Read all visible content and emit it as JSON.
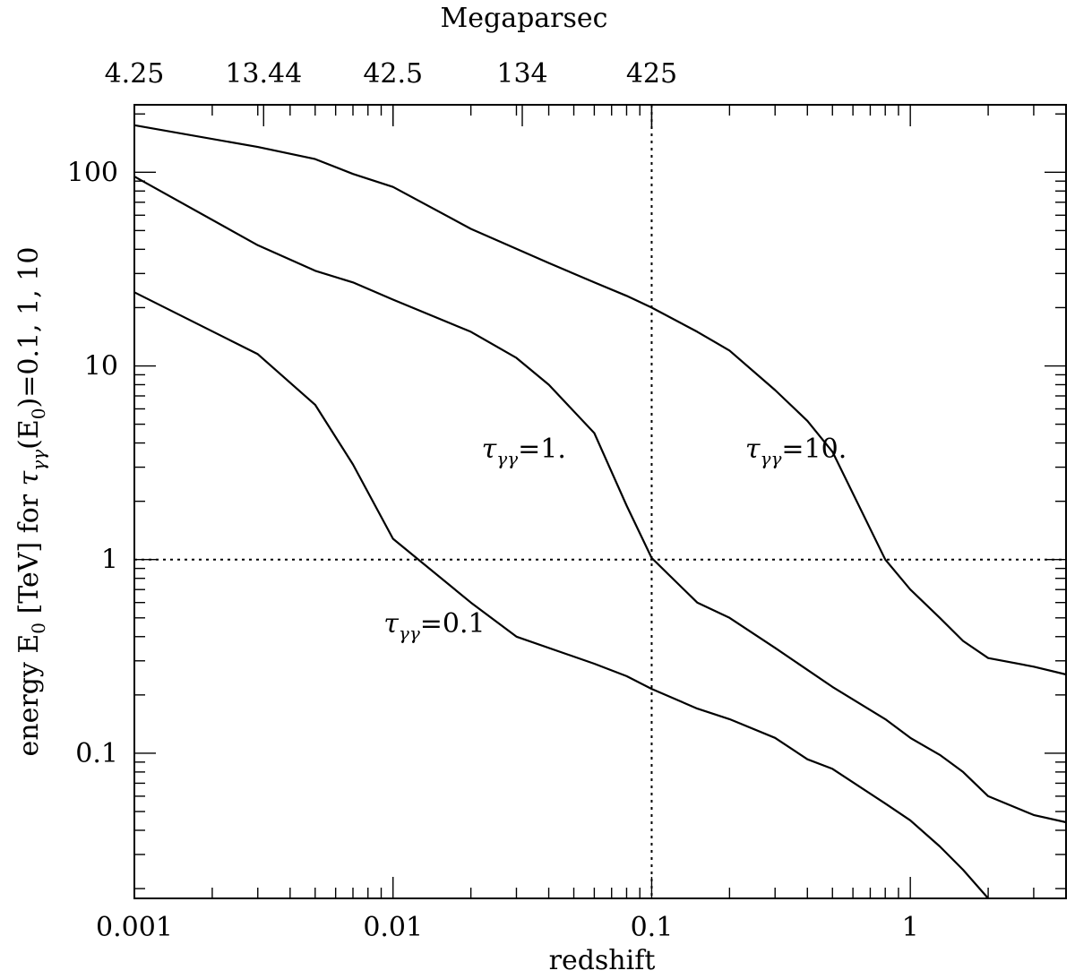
{
  "chart_data": {
    "type": "line",
    "x_scale": "log",
    "y_scale": "log",
    "xlabel": "redshift",
    "ylabel": "energy E₀ [TeV] for τγγ(E₀)=0.1, 1, 10",
    "top_axis_label": "Megaparsec",
    "xlim": [
      0.001,
      4
    ],
    "ylim": [
      0.0178,
      223
    ],
    "x_ticks": [
      {
        "value": 0.001,
        "label": "0.001"
      },
      {
        "value": 0.01,
        "label": "0.01"
      },
      {
        "value": 0.1,
        "label": "0.1"
      },
      {
        "value": 1,
        "label": "1"
      }
    ],
    "y_ticks": [
      {
        "value": 0.1,
        "label": "0.1"
      },
      {
        "value": 1,
        "label": "1"
      },
      {
        "value": 10,
        "label": "10"
      },
      {
        "value": 100,
        "label": "100"
      }
    ],
    "top_ticks": [
      {
        "value": 0.001,
        "label": "4.25"
      },
      {
        "value": 0.00316,
        "label": "13.44"
      },
      {
        "value": 0.01,
        "label": "42.5"
      },
      {
        "value": 0.0316,
        "label": "134"
      },
      {
        "value": 0.1,
        "label": "425"
      }
    ],
    "reference_lines": [
      {
        "axis": "x",
        "value": 0.1,
        "style": "dotted"
      },
      {
        "axis": "y",
        "value": 1,
        "style": "dotted"
      }
    ],
    "series": [
      {
        "name": "τγγ=0.1",
        "x": [
          0.001,
          0.003,
          0.005,
          0.007,
          0.01,
          0.02,
          0.03,
          0.06,
          0.08,
          0.1,
          0.15,
          0.2,
          0.3,
          0.4,
          0.5,
          0.8,
          1.0,
          1.3,
          1.6,
          2.0
        ],
        "y": [
          24,
          11.5,
          6.3,
          3.1,
          1.28,
          0.6,
          0.4,
          0.29,
          0.25,
          0.215,
          0.17,
          0.15,
          0.12,
          0.093,
          0.083,
          0.055,
          0.045,
          0.033,
          0.025,
          0.0178
        ]
      },
      {
        "name": "τγγ=1.",
        "x": [
          0.001,
          0.003,
          0.005,
          0.007,
          0.01,
          0.02,
          0.03,
          0.04,
          0.06,
          0.08,
          0.1,
          0.15,
          0.2,
          0.3,
          0.5,
          0.8,
          1.0,
          1.3,
          1.6,
          2.0,
          3.0,
          4.0
        ],
        "y": [
          95,
          42,
          31,
          27,
          22,
          15,
          11,
          8,
          4.5,
          1.9,
          1.02,
          0.6,
          0.5,
          0.35,
          0.22,
          0.15,
          0.12,
          0.098,
          0.08,
          0.06,
          0.048,
          0.044
        ]
      },
      {
        "name": "τγγ=10.",
        "x": [
          0.001,
          0.003,
          0.005,
          0.007,
          0.01,
          0.02,
          0.04,
          0.06,
          0.08,
          0.1,
          0.15,
          0.2,
          0.3,
          0.4,
          0.5,
          0.8,
          1.0,
          1.3,
          1.6,
          2.0,
          3.0,
          4.0
        ],
        "y": [
          175,
          135,
          117,
          98,
          84,
          51,
          34,
          27,
          23,
          20,
          15,
          12,
          7.5,
          5.2,
          3.6,
          1.0,
          0.7,
          0.5,
          0.38,
          0.31,
          0.28,
          0.255
        ]
      }
    ],
    "annotations": [
      {
        "base": "τ",
        "sub": "γγ",
        "rest": "=0.1",
        "x": 0.0092,
        "y": 0.42
      },
      {
        "base": "τ",
        "sub": "γγ",
        "rest": "=1.",
        "x": 0.022,
        "y": 3.35
      },
      {
        "base": "τ",
        "sub": "γγ",
        "rest": "=10.",
        "x": 0.23,
        "y": 3.35
      }
    ]
  }
}
